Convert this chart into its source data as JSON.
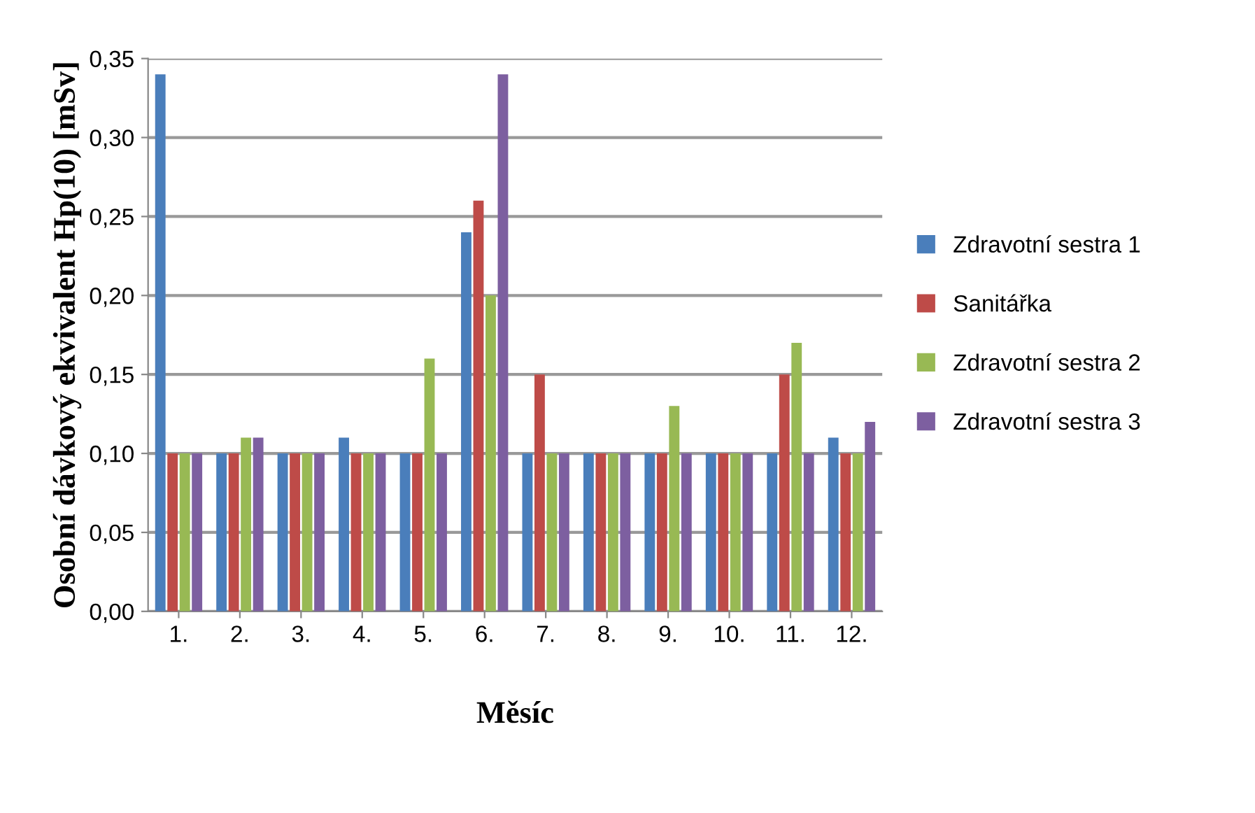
{
  "chart_data": {
    "type": "bar",
    "xlabel": "Měsíc",
    "ylabel": "Osobní dávkový ekvivalent Hp(10) [mSv]",
    "categories": [
      "1.",
      "2.",
      "3.",
      "4.",
      "5.",
      "6.",
      "7.",
      "8.",
      "9.",
      "10.",
      "11.",
      "12."
    ],
    "series": [
      {
        "name": "Zdravotní sestra 1",
        "color": "#4a7ebb",
        "values": [
          0.34,
          0.1,
          0.1,
          0.11,
          0.1,
          0.24,
          0.1,
          0.1,
          0.1,
          0.1,
          0.1,
          0.11
        ]
      },
      {
        "name": "Sanitářka",
        "color": "#be4b48",
        "values": [
          0.1,
          0.1,
          0.1,
          0.1,
          0.1,
          0.26,
          0.15,
          0.1,
          0.1,
          0.1,
          0.15,
          0.1
        ]
      },
      {
        "name": "Zdravotní sestra 2",
        "color": "#98b954",
        "values": [
          0.1,
          0.11,
          0.1,
          0.1,
          0.16,
          0.2,
          0.1,
          0.1,
          0.13,
          0.1,
          0.17,
          0.1
        ]
      },
      {
        "name": "Zdravotní sestra 3",
        "color": "#7d5fa0",
        "values": [
          0.1,
          0.11,
          0.1,
          0.1,
          0.1,
          0.34,
          0.1,
          0.1,
          0.1,
          0.1,
          0.1,
          0.12
        ]
      }
    ],
    "ylim": [
      0,
      0.35
    ],
    "yticks": [
      {
        "value": 0,
        "label": "0,00"
      },
      {
        "value": 0.05,
        "label": "0,05"
      },
      {
        "value": 0.1,
        "label": "0,10"
      },
      {
        "value": 0.15,
        "label": "0,15"
      },
      {
        "value": 0.2,
        "label": "0,20"
      },
      {
        "value": 0.25,
        "label": "0,25"
      },
      {
        "value": 0.3,
        "label": "0,30"
      },
      {
        "value": 0.35,
        "label": "0,35"
      }
    ],
    "grid": "y",
    "legend": "right"
  }
}
